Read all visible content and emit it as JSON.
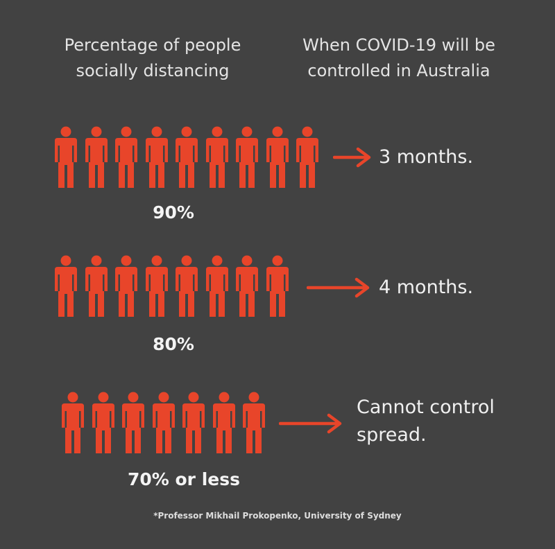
{
  "header": {
    "left_line1": "Percentage of people",
    "left_line2": "socially distancing",
    "right_line1": "When COVID-19 will be",
    "right_line2": "controlled in Australia"
  },
  "colors": {
    "background": "#424242",
    "accent": "#e8452a",
    "text": "#f0f0f0"
  },
  "icons": {
    "person": "person-icon",
    "arrow": "right-arrow-icon"
  },
  "chart_data": {
    "type": "table",
    "columns": [
      "Percentage of people socially distancing",
      "When COVID-19 will be controlled in Australia"
    ],
    "rows": [
      {
        "label": "90%",
        "value_percent": 90,
        "people_icons": 9,
        "outcome_line1": "3 months.",
        "outcome_line2": ""
      },
      {
        "label": "80%",
        "value_percent": 80,
        "people_icons": 8,
        "outcome_line1": "4 months.",
        "outcome_line2": ""
      },
      {
        "label": "70% or less",
        "value_percent": 70,
        "people_icons": 7,
        "outcome_line1": "Cannot control",
        "outcome_line2": "spread."
      }
    ]
  },
  "footnote": "*Professor Mikhail Prokopenko, University of Sydney"
}
